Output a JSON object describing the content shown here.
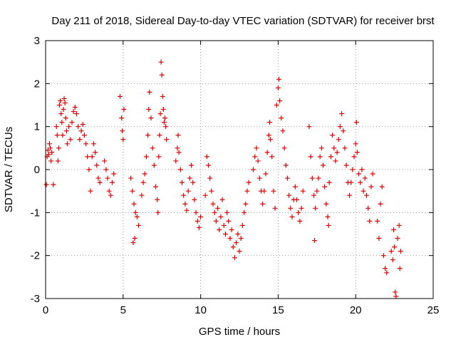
{
  "chart_data": {
    "type": "scatter",
    "title": "Day 211 of 2018, Sidereal Day-to-day VTEC variation (SDTVAR) for receiver brst",
    "xlabel": "GPS time / hours",
    "ylabel": "SDTVAR / TECUs",
    "xlim": [
      0,
      25
    ],
    "ylim": [
      -3,
      3
    ],
    "xticks": [
      0,
      5,
      10,
      15,
      20,
      25
    ],
    "yticks": [
      -3,
      -2,
      -1,
      0,
      1,
      2,
      3
    ],
    "grid": true,
    "marker": "+",
    "colors": {
      "series": "#e00000",
      "grid": "#a0a0a0",
      "axis": "#000000"
    },
    "series": [
      {
        "name": "SDTVAR",
        "points": [
          [
            0.05,
            -0.35
          ],
          [
            0.1,
            0.3
          ],
          [
            0.15,
            0.45
          ],
          [
            0.2,
            0.35
          ],
          [
            0.25,
            0.6
          ],
          [
            0.3,
            0.5
          ],
          [
            0.35,
            0.2
          ],
          [
            0.4,
            0.4
          ],
          [
            0.5,
            -0.35
          ],
          [
            0.7,
            1.0
          ],
          [
            0.75,
            0.8
          ],
          [
            0.8,
            0.2
          ],
          [
            0.85,
            0.5
          ],
          [
            0.9,
            1.5
          ],
          [
            0.95,
            1.6
          ],
          [
            1.0,
            1.3
          ],
          [
            1.05,
            1.1
          ],
          [
            1.1,
            0.8
          ],
          [
            1.15,
            1.4
          ],
          [
            1.2,
            1.65
          ],
          [
            1.25,
            1.55
          ],
          [
            1.3,
            1.2
          ],
          [
            1.35,
            0.9
          ],
          [
            1.4,
            0.6
          ],
          [
            1.5,
            1.0
          ],
          [
            1.6,
            0.7
          ],
          [
            1.7,
            1.1
          ],
          [
            1.8,
            1.35
          ],
          [
            1.9,
            1.45
          ],
          [
            2.0,
            1.3
          ],
          [
            2.1,
            1.0
          ],
          [
            2.2,
            0.7
          ],
          [
            2.3,
            0.9
          ],
          [
            2.4,
            1.05
          ],
          [
            2.5,
            0.8
          ],
          [
            2.6,
            0.6
          ],
          [
            2.7,
            0.3
          ],
          [
            2.8,
            0.0
          ],
          [
            2.9,
            -0.5
          ],
          [
            3.0,
            0.3
          ],
          [
            3.1,
            0.6
          ],
          [
            3.2,
            0.4
          ],
          [
            3.3,
            0.1
          ],
          [
            3.4,
            -0.2
          ],
          [
            3.5,
            -0.3
          ],
          [
            3.8,
            0.2
          ],
          [
            3.9,
            0.0
          ],
          [
            4.0,
            -0.2
          ],
          [
            4.1,
            -0.5
          ],
          [
            4.2,
            -0.6
          ],
          [
            4.3,
            -0.3
          ],
          [
            4.4,
            -0.1
          ],
          [
            4.8,
            1.7
          ],
          [
            4.9,
            1.2
          ],
          [
            4.95,
            0.9
          ],
          [
            5.0,
            0.7
          ],
          [
            5.05,
            1.4
          ],
          [
            5.5,
            -0.2
          ],
          [
            5.6,
            -0.5
          ],
          [
            5.7,
            -0.8
          ],
          [
            5.8,
            -1.0
          ],
          [
            5.9,
            -1.1
          ],
          [
            6.0,
            -1.3
          ],
          [
            5.65,
            -1.7
          ],
          [
            5.75,
            -1.6
          ],
          [
            6.2,
            -0.6
          ],
          [
            6.3,
            -0.3
          ],
          [
            6.4,
            -0.1
          ],
          [
            6.5,
            0.3
          ],
          [
            6.6,
            0.8
          ],
          [
            6.65,
            1.4
          ],
          [
            6.7,
            1.8
          ],
          [
            6.8,
            1.2
          ],
          [
            6.9,
            0.5
          ],
          [
            7.0,
            0.1
          ],
          [
            7.1,
            -0.4
          ],
          [
            7.2,
            -0.7
          ],
          [
            7.25,
            -1.0
          ],
          [
            7.3,
            0.3
          ],
          [
            7.35,
            0.8
          ],
          [
            7.4,
            1.3
          ],
          [
            7.45,
            2.5
          ],
          [
            7.5,
            2.2
          ],
          [
            7.55,
            1.7
          ],
          [
            7.6,
            1.4
          ],
          [
            7.65,
            1.1
          ],
          [
            7.7,
            1.2
          ],
          [
            7.75,
            1.0
          ],
          [
            7.8,
            0.7
          ],
          [
            8.4,
            0.2
          ],
          [
            8.5,
            0.5
          ],
          [
            8.55,
            0.8
          ],
          [
            8.6,
            0.4
          ],
          [
            8.7,
            0.0
          ],
          [
            8.8,
            -0.3
          ],
          [
            8.9,
            -0.6
          ],
          [
            9.0,
            -0.8
          ],
          [
            9.1,
            -0.95
          ],
          [
            9.2,
            -0.5
          ],
          [
            9.3,
            -0.2
          ],
          [
            9.4,
            0.1
          ],
          [
            9.5,
            -0.3
          ],
          [
            9.6,
            -0.7
          ],
          [
            9.7,
            -1.0
          ],
          [
            9.8,
            -1.2
          ],
          [
            9.9,
            -1.35
          ],
          [
            10.0,
            -1.1
          ],
          [
            10.3,
            -0.6
          ],
          [
            10.4,
            0.3
          ],
          [
            10.5,
            0.1
          ],
          [
            10.6,
            -0.2
          ],
          [
            10.7,
            -0.5
          ],
          [
            10.8,
            -0.8
          ],
          [
            10.9,
            -1.0
          ],
          [
            11.0,
            -1.2
          ],
          [
            11.1,
            -0.9
          ],
          [
            11.2,
            -1.4
          ],
          [
            11.3,
            -1.1
          ],
          [
            11.4,
            -0.7
          ],
          [
            11.5,
            -1.3
          ],
          [
            11.6,
            -1.5
          ],
          [
            11.7,
            -1.0
          ],
          [
            11.8,
            -1.2
          ],
          [
            11.9,
            -1.6
          ],
          [
            12.0,
            -1.4
          ],
          [
            12.1,
            -1.8
          ],
          [
            12.2,
            -2.05
          ],
          [
            12.3,
            -1.7
          ],
          [
            12.4,
            -1.5
          ],
          [
            12.5,
            -1.9
          ],
          [
            12.6,
            -1.6
          ],
          [
            12.7,
            -1.3
          ],
          [
            12.8,
            -1.0
          ],
          [
            12.9,
            -0.8
          ],
          [
            13.0,
            -0.5
          ],
          [
            13.1,
            -0.3
          ],
          [
            13.4,
            0.0
          ],
          [
            13.5,
            0.3
          ],
          [
            13.6,
            0.5
          ],
          [
            13.7,
            0.2
          ],
          [
            13.8,
            -0.2
          ],
          [
            13.9,
            -0.5
          ],
          [
            14.0,
            -0.8
          ],
          [
            14.1,
            -0.5
          ],
          [
            14.2,
            -0.1
          ],
          [
            14.3,
            0.4
          ],
          [
            14.4,
            0.8
          ],
          [
            14.45,
            1.1
          ],
          [
            14.5,
            0.7
          ],
          [
            14.6,
            0.3
          ],
          [
            14.7,
            -0.5
          ],
          [
            14.8,
            -0.9
          ],
          [
            14.9,
            1.5
          ],
          [
            15.0,
            1.9
          ],
          [
            15.05,
            2.1
          ],
          [
            15.1,
            1.6
          ],
          [
            15.2,
            1.2
          ],
          [
            15.3,
            0.9
          ],
          [
            15.4,
            0.5
          ],
          [
            15.5,
            0.1
          ],
          [
            15.6,
            -0.2
          ],
          [
            15.7,
            -0.6
          ],
          [
            15.8,
            -0.9
          ],
          [
            15.9,
            -1.1
          ],
          [
            16.0,
            -0.7
          ],
          [
            16.1,
            -0.4
          ],
          [
            16.2,
            -0.7
          ],
          [
            16.3,
            -1.0
          ],
          [
            16.4,
            -1.2
          ],
          [
            16.5,
            -0.9
          ],
          [
            16.6,
            -0.5
          ],
          [
            17.0,
            1.0
          ],
          [
            17.1,
            0.3
          ],
          [
            17.2,
            -0.2
          ],
          [
            17.3,
            -0.6
          ],
          [
            17.35,
            -1.65
          ],
          [
            17.4,
            -0.9
          ],
          [
            17.5,
            -0.5
          ],
          [
            17.6,
            -0.2
          ],
          [
            17.7,
            0.3
          ],
          [
            17.8,
            0.5
          ],
          [
            17.9,
            0.1
          ],
          [
            18.0,
            -0.4
          ],
          [
            18.1,
            -0.8
          ],
          [
            18.2,
            -1.1
          ],
          [
            18.25,
            -1.3
          ],
          [
            18.3,
            -0.3
          ],
          [
            18.4,
            0.3
          ],
          [
            18.5,
            0.8
          ],
          [
            18.6,
            0.5
          ],
          [
            18.7,
            0.2
          ],
          [
            18.8,
            0.4
          ],
          [
            18.9,
            0.7
          ],
          [
            19.0,
            1.0
          ],
          [
            19.1,
            1.3
          ],
          [
            19.2,
            0.9
          ],
          [
            19.3,
            0.5
          ],
          [
            19.4,
            0.1
          ],
          [
            19.5,
            -0.3
          ],
          [
            19.6,
            -0.6
          ],
          [
            19.7,
            -0.3
          ],
          [
            19.8,
            0.0
          ],
          [
            19.9,
            0.3
          ],
          [
            20.0,
            0.6
          ],
          [
            20.05,
            1.1
          ],
          [
            20.1,
            0.4
          ],
          [
            20.2,
            -0.1
          ],
          [
            20.3,
            -0.3
          ],
          [
            20.4,
            0.0
          ],
          [
            20.5,
            -0.5
          ],
          [
            20.6,
            -0.2
          ],
          [
            20.7,
            -0.6
          ],
          [
            20.8,
            -0.9
          ],
          [
            20.9,
            -1.2
          ],
          [
            21.0,
            -0.4
          ],
          [
            21.1,
            -0.1
          ],
          [
            21.4,
            -1.2
          ],
          [
            21.5,
            -1.6
          ],
          [
            21.6,
            -0.8
          ],
          [
            21.7,
            -0.4
          ],
          [
            21.8,
            -2.0
          ],
          [
            21.9,
            -2.3
          ],
          [
            22.0,
            -2.4
          ],
          [
            22.3,
            -1.9
          ],
          [
            22.4,
            -2.1
          ],
          [
            22.45,
            -1.4
          ],
          [
            22.5,
            -1.8
          ],
          [
            22.55,
            -2.85
          ],
          [
            22.6,
            -2.95
          ],
          [
            22.7,
            -1.6
          ],
          [
            22.8,
            -1.3
          ],
          [
            22.85,
            -2.3
          ],
          [
            22.9,
            -1.9
          ]
        ]
      }
    ]
  }
}
